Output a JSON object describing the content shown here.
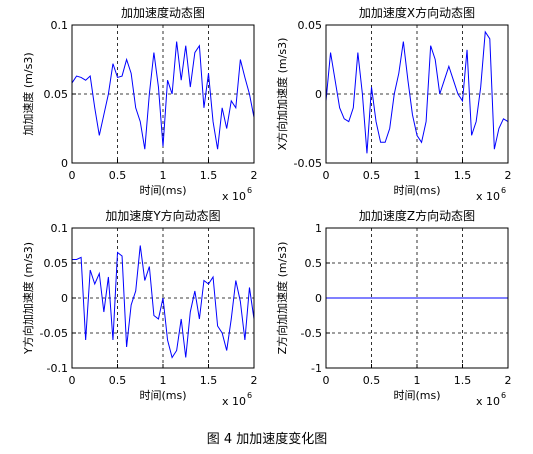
{
  "caption": "图 4  加加速度变化图",
  "chart_data": [
    {
      "type": "line",
      "title": "加加速度动态图",
      "xlabel": "时间(ms)",
      "ylabel": "加加速度 (m/s3)",
      "x_scale_base": "x 10",
      "x_scale_exponent": "6",
      "x": [
        0,
        50000,
        100000,
        150000,
        200000,
        250000,
        300000,
        350000,
        400000,
        450000,
        500000,
        550000,
        600000,
        650000,
        700000,
        750000,
        800000,
        850000,
        900000,
        950000,
        1000000,
        1050000,
        1100000,
        1150000,
        1200000,
        1250000,
        1300000,
        1350000,
        1400000,
        1450000,
        1500000,
        1550000,
        1600000,
        1650000,
        1700000,
        1750000,
        1800000,
        1850000,
        1900000,
        1950000,
        2000000
      ],
      "series": [
        {
          "color": "#0000ff",
          "values": [
            0.058,
            0.063,
            0.062,
            0.06,
            0.063,
            0.04,
            0.02,
            0.035,
            0.05,
            0.072,
            0.062,
            0.063,
            0.075,
            0.065,
            0.04,
            0.03,
            0.01,
            0.05,
            0.08,
            0.055,
            0.012,
            0.06,
            0.05,
            0.088,
            0.06,
            0.085,
            0.055,
            0.08,
            0.085,
            0.04,
            0.065,
            0.03,
            0.01,
            0.04,
            0.025,
            0.045,
            0.04,
            0.075,
            0.062,
            0.05,
            0.033
          ]
        }
      ],
      "xlim": [
        0,
        2000000
      ],
      "xticks": [
        0,
        {
          "value": 500000,
          "label": "0.5"
        },
        {
          "value": 1000000,
          "label": "1"
        },
        {
          "value": 1500000,
          "label": "1.5"
        },
        {
          "value": 2000000,
          "label": "2"
        }
      ],
      "ylim": [
        0,
        0.1
      ],
      "yticks": [
        0,
        0.05,
        0.1
      ],
      "grid": true
    },
    {
      "type": "line",
      "title": "加加速度X方向动态图",
      "xlabel": "时间(ms)",
      "ylabel": "X方向加加速度 (m/s3)",
      "x_scale_base": "x 10",
      "x_scale_exponent": "6",
      "x": [
        0,
        50000,
        100000,
        150000,
        200000,
        250000,
        300000,
        350000,
        400000,
        450000,
        500000,
        550000,
        600000,
        650000,
        700000,
        750000,
        800000,
        850000,
        900000,
        950000,
        1000000,
        1050000,
        1100000,
        1150000,
        1200000,
        1250000,
        1300000,
        1350000,
        1400000,
        1450000,
        1500000,
        1550000,
        1600000,
        1650000,
        1700000,
        1750000,
        1800000,
        1850000,
        1900000,
        1950000,
        2000000
      ],
      "series": [
        {
          "color": "#0000ff",
          "values": [
            -0.005,
            0.03,
            0.01,
            -0.01,
            -0.018,
            -0.02,
            -0.01,
            0.03,
            0.0,
            -0.043,
            0.005,
            -0.02,
            -0.035,
            -0.035,
            -0.025,
            0.0,
            0.015,
            0.038,
            0.01,
            -0.015,
            -0.03,
            -0.035,
            -0.02,
            0.035,
            0.025,
            0.0,
            0.01,
            0.02,
            0.01,
            0.0,
            -0.005,
            0.032,
            -0.03,
            -0.02,
            0.005,
            0.045,
            0.04,
            -0.04,
            -0.025,
            -0.018,
            -0.02
          ]
        }
      ],
      "xlim": [
        0,
        2000000
      ],
      "xticks": [
        0,
        {
          "value": 500000,
          "label": "0.5"
        },
        {
          "value": 1000000,
          "label": "1"
        },
        {
          "value": 1500000,
          "label": "1.5"
        },
        {
          "value": 2000000,
          "label": "2"
        }
      ],
      "ylim": [
        -0.05,
        0.05
      ],
      "yticks": [
        -0.05,
        0,
        0.05
      ],
      "grid": true
    },
    {
      "type": "line",
      "title": "加加速度Y方向动态图",
      "xlabel": "时间(ms)",
      "ylabel": "Y方向加加速度 (m/s3)",
      "x_scale_base": "x 10",
      "x_scale_exponent": "6",
      "x": [
        0,
        50000,
        100000,
        150000,
        200000,
        250000,
        300000,
        350000,
        400000,
        450000,
        500000,
        550000,
        600000,
        650000,
        700000,
        750000,
        800000,
        850000,
        900000,
        950000,
        1000000,
        1050000,
        1100000,
        1150000,
        1200000,
        1250000,
        1300000,
        1350000,
        1400000,
        1450000,
        1500000,
        1550000,
        1600000,
        1650000,
        1700000,
        1750000,
        1800000,
        1850000,
        1900000,
        1950000,
        2000000
      ],
      "series": [
        {
          "color": "#0000ff",
          "values": [
            0.055,
            0.055,
            0.058,
            -0.06,
            0.04,
            0.02,
            0.035,
            -0.02,
            0.03,
            -0.06,
            0.065,
            0.06,
            -0.07,
            -0.01,
            0.01,
            0.075,
            0.025,
            0.045,
            -0.025,
            -0.03,
            0.0,
            -0.06,
            -0.085,
            -0.075,
            -0.03,
            -0.085,
            -0.02,
            0.01,
            -0.03,
            0.025,
            0.02,
            0.03,
            -0.04,
            -0.05,
            -0.075,
            -0.03,
            0.025,
            -0.005,
            -0.06,
            0.015,
            -0.03
          ]
        }
      ],
      "xlim": [
        0,
        2000000
      ],
      "xticks": [
        0,
        {
          "value": 500000,
          "label": "0.5"
        },
        {
          "value": 1000000,
          "label": "1"
        },
        {
          "value": 1500000,
          "label": "1.5"
        },
        {
          "value": 2000000,
          "label": "2"
        }
      ],
      "ylim": [
        -0.1,
        0.1
      ],
      "yticks": [
        -0.1,
        -0.05,
        0,
        0.05,
        0.1
      ],
      "grid": true
    },
    {
      "type": "line",
      "title": "加加速度Z方向动态图",
      "xlabel": "时间(ms)",
      "ylabel": "Z方向加加速度 (m/s3)",
      "x_scale_base": "x 10",
      "x_scale_exponent": "6",
      "x": [
        0,
        50000,
        100000,
        150000,
        200000,
        250000,
        300000,
        350000,
        400000,
        450000,
        500000,
        550000,
        600000,
        650000,
        700000,
        750000,
        800000,
        850000,
        900000,
        950000,
        1000000,
        1050000,
        1100000,
        1150000,
        1200000,
        1250000,
        1300000,
        1350000,
        1400000,
        1450000,
        1500000,
        1550000,
        1600000,
        1650000,
        1700000,
        1750000,
        1800000,
        1850000,
        1900000,
        1950000,
        2000000
      ],
      "series": [
        {
          "color": "#0000ff",
          "values": [
            0,
            0,
            0,
            0,
            0,
            0,
            0,
            0,
            0,
            0,
            0,
            0,
            0,
            0,
            0,
            0,
            0,
            0,
            0,
            0,
            0,
            0,
            0,
            0,
            0,
            0,
            0,
            0,
            0,
            0,
            0,
            0,
            0,
            0,
            0,
            0,
            0,
            0,
            0,
            0,
            0
          ]
        }
      ],
      "xlim": [
        0,
        2000000
      ],
      "xticks": [
        0,
        {
          "value": 500000,
          "label": "0.5"
        },
        {
          "value": 1000000,
          "label": "1"
        },
        {
          "value": 1500000,
          "label": "1.5"
        },
        {
          "value": 2000000,
          "label": "2"
        }
      ],
      "ylim": [
        -1,
        1
      ],
      "yticks": [
        -1,
        -0.5,
        0,
        0.5,
        1
      ],
      "grid": true
    }
  ]
}
